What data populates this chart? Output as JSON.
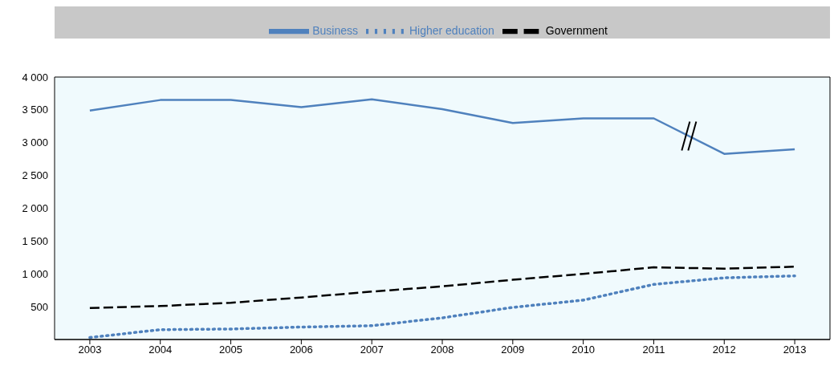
{
  "chart_data": {
    "type": "line",
    "categories": [
      "2003",
      "2004",
      "2005",
      "2006",
      "2007",
      "2008",
      "2009",
      "2010",
      "2011",
      "2012",
      "2013"
    ],
    "series": [
      {
        "name": "Business",
        "color": "#4f81bd",
        "line_style": "solid",
        "values": [
          3490,
          3650,
          3650,
          3540,
          3660,
          3510,
          3300,
          3370,
          3370,
          2830,
          2900
        ]
      },
      {
        "name": "Higher education",
        "color": "#4f81bd",
        "line_style": "dotted",
        "values": [
          30,
          150,
          160,
          190,
          210,
          330,
          490,
          600,
          840,
          940,
          970
        ]
      },
      {
        "name": "Government",
        "color": "#000000",
        "line_style": "dashed",
        "values": [
          480,
          510,
          560,
          640,
          730,
          810,
          910,
          1000,
          1100,
          1080,
          1110
        ]
      }
    ],
    "ylim": [
      0,
      4000
    ],
    "yticks": [
      {
        "value": 500,
        "label": "500"
      },
      {
        "value": 1000,
        "label": "1 000"
      },
      {
        "value": 1500,
        "label": "1 500"
      },
      {
        "value": 2000,
        "label": "2 000"
      },
      {
        "value": 2500,
        "label": "2 500"
      },
      {
        "value": 3000,
        "label": "3 000"
      },
      {
        "value": 3500,
        "label": "3 500"
      },
      {
        "value": 4000,
        "label": "4 000"
      }
    ],
    "grid": false,
    "legend": "top",
    "marker": "none"
  }
}
